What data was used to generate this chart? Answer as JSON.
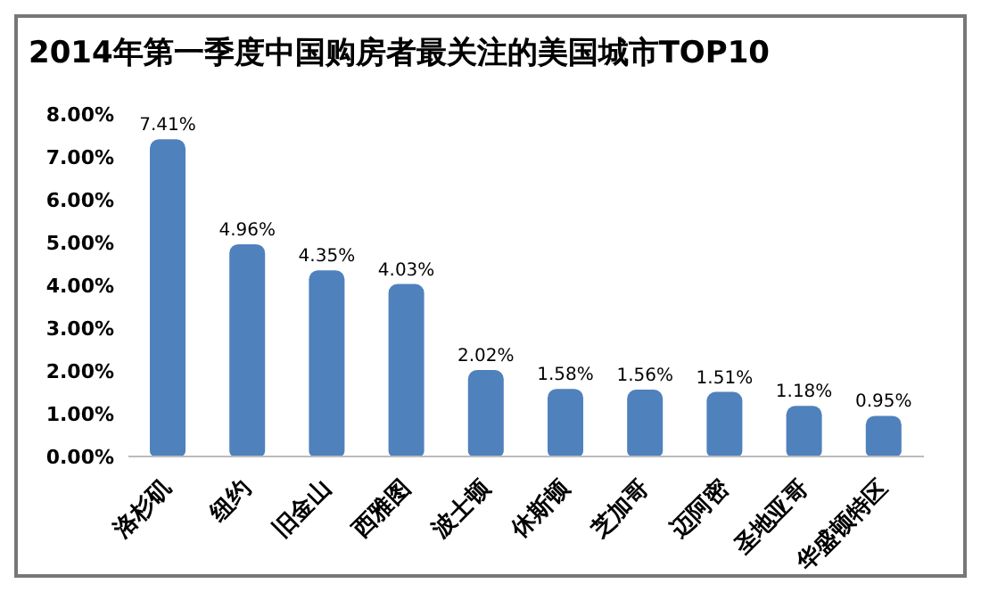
{
  "chart_data": {
    "type": "bar",
    "title": "2014年第一季度中国购房者最关注的美国城市TOP10",
    "categories": [
      "洛杉矶",
      "纽约",
      "旧金山",
      "西雅图",
      "波士顿",
      "休斯顿",
      "芝加哥",
      "迈阿密",
      "圣地亚哥",
      "华盛顿特区"
    ],
    "values": [
      7.41,
      4.96,
      4.35,
      4.03,
      2.02,
      1.58,
      1.56,
      1.51,
      1.18,
      0.95
    ],
    "value_labels": [
      "7.41%",
      "4.96%",
      "4.35%",
      "4.03%",
      "2.02%",
      "1.58%",
      "1.56%",
      "1.51%",
      "1.18%",
      "0.95%"
    ],
    "color": "#4f81bd",
    "ylim": [
      0,
      8
    ],
    "yticks": [
      {
        "value": 0,
        "label": "0.00%"
      },
      {
        "value": 1,
        "label": "1.00%"
      },
      {
        "value": 2,
        "label": "2.00%"
      },
      {
        "value": 3,
        "label": "3.00%"
      },
      {
        "value": 4,
        "label": "4.00%"
      },
      {
        "value": 5,
        "label": "5.00%"
      },
      {
        "value": 6,
        "label": "6.00%"
      },
      {
        "value": 7,
        "label": "7.00%"
      },
      {
        "value": 8,
        "label": "8.00%"
      }
    ],
    "grid": false
  }
}
